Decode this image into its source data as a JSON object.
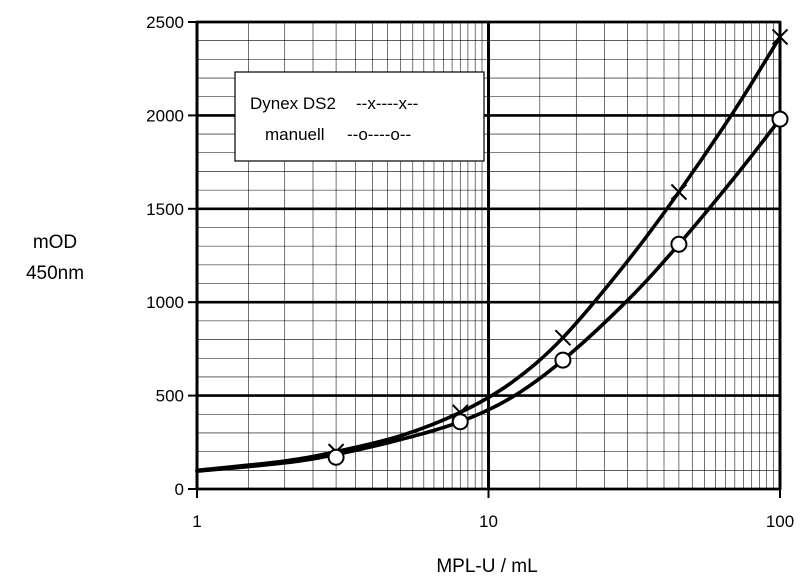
{
  "chart_data": {
    "type": "line",
    "title": "",
    "xlabel": "MPL-U / mL",
    "ylabel": [
      "mOD",
      "450nm"
    ],
    "x_scale": "log",
    "xlim": [
      1,
      100
    ],
    "ylim": [
      0,
      2500
    ],
    "x_ticks": [
      1,
      10,
      100
    ],
    "x_tick_labels": [
      "1",
      "10",
      "100"
    ],
    "y_ticks": [
      0,
      500,
      1000,
      1500,
      2000,
      2500
    ],
    "y_tick_labels": [
      "0",
      "500",
      "1000",
      "1500",
      "2000",
      "2500"
    ],
    "grid": true,
    "legend": {
      "placement": "top-left",
      "entries": [
        {
          "label": "Dynex DS2",
          "style": "--x----x--"
        },
        {
          "label": "manuell",
          "style": "--o----o--"
        }
      ]
    },
    "series": [
      {
        "marker": "x",
        "points": [
          {
            "x": 3,
            "y": 200
          },
          {
            "x": 8,
            "y": 410
          },
          {
            "x": 18,
            "y": 810
          },
          {
            "x": 45,
            "y": 1590
          },
          {
            "x": 100,
            "y": 2420
          }
        ],
        "curve": [
          {
            "x": 1,
            "y": 100
          },
          {
            "x": 2,
            "y": 150
          },
          {
            "x": 3,
            "y": 200
          },
          {
            "x": 5,
            "y": 285
          },
          {
            "x": 8,
            "y": 410
          },
          {
            "x": 12,
            "y": 570
          },
          {
            "x": 18,
            "y": 810
          },
          {
            "x": 30,
            "y": 1220
          },
          {
            "x": 45,
            "y": 1590
          },
          {
            "x": 70,
            "y": 2030
          },
          {
            "x": 100,
            "y": 2420
          }
        ]
      },
      {
        "marker": "o",
        "points": [
          {
            "x": 3,
            "y": 170
          },
          {
            "x": 8,
            "y": 360
          },
          {
            "x": 18,
            "y": 690
          },
          {
            "x": 45,
            "y": 1310
          },
          {
            "x": 100,
            "y": 1980
          }
        ],
        "curve": [
          {
            "x": 1,
            "y": 95
          },
          {
            "x": 2,
            "y": 140
          },
          {
            "x": 3,
            "y": 185
          },
          {
            "x": 5,
            "y": 265
          },
          {
            "x": 8,
            "y": 360
          },
          {
            "x": 12,
            "y": 490
          },
          {
            "x": 18,
            "y": 690
          },
          {
            "x": 30,
            "y": 1010
          },
          {
            "x": 45,
            "y": 1310
          },
          {
            "x": 70,
            "y": 1670
          },
          {
            "x": 100,
            "y": 1980
          }
        ]
      }
    ]
  }
}
